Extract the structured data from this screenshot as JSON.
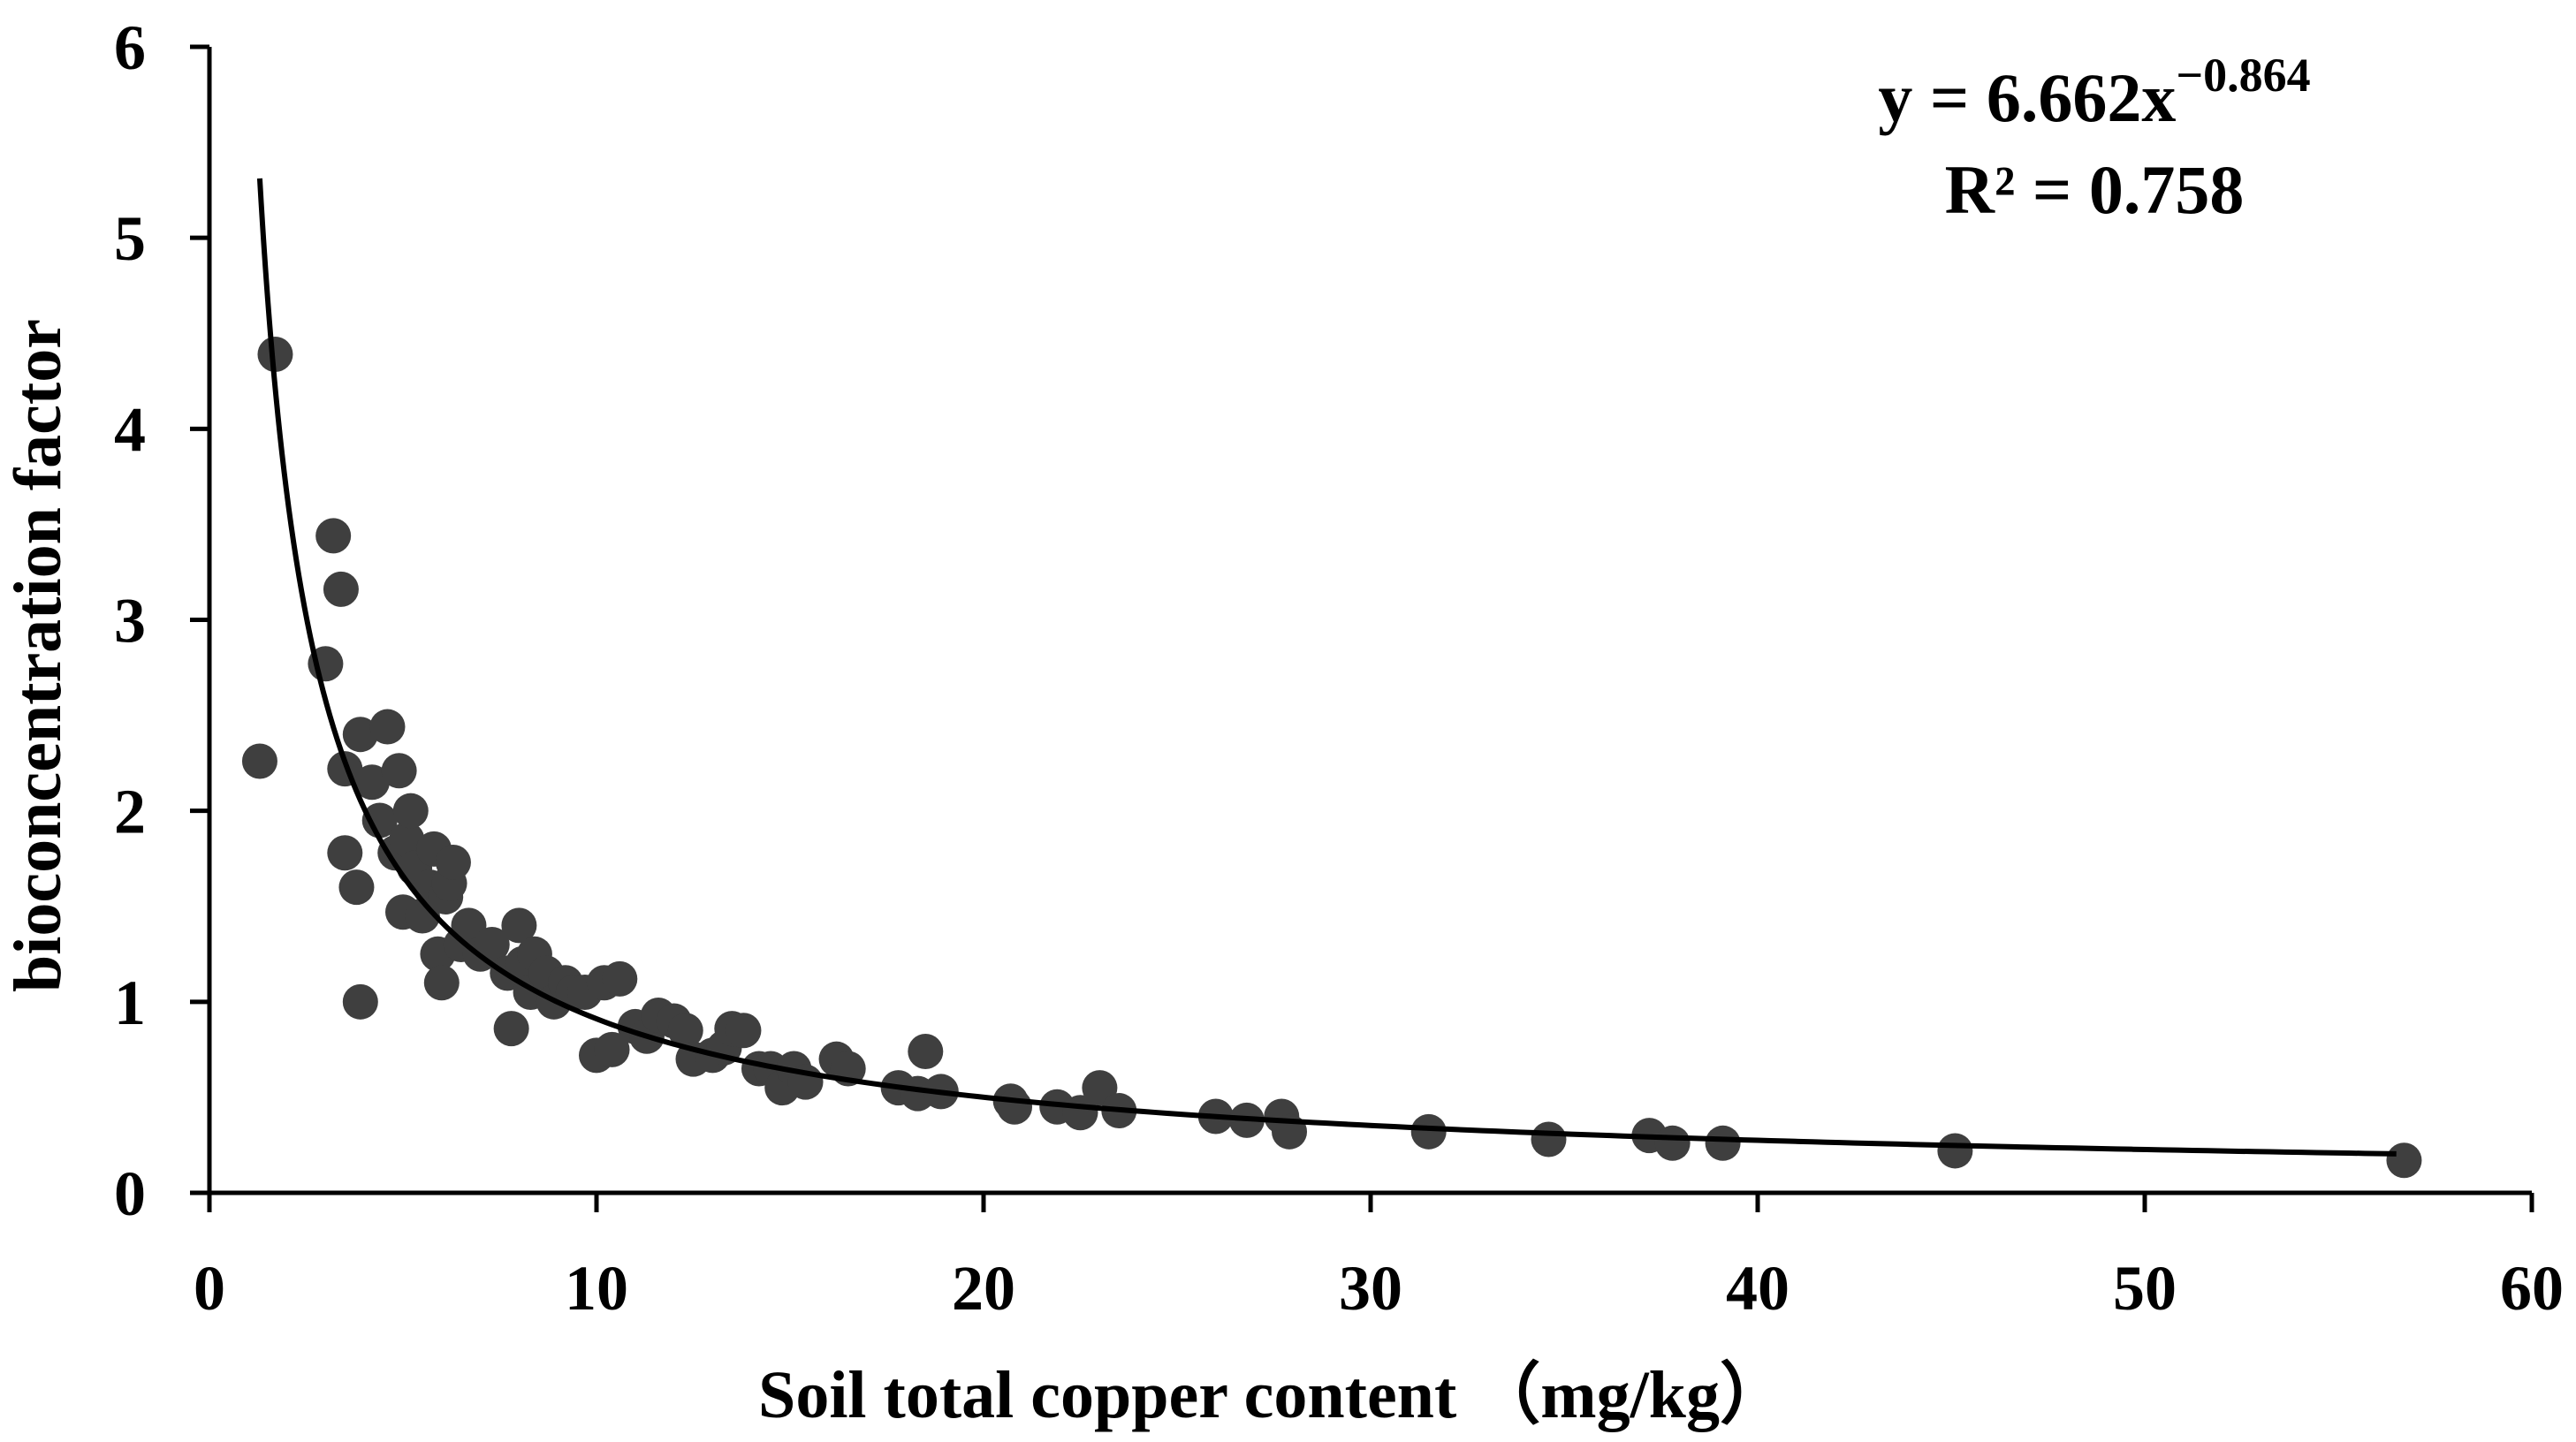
{
  "chart_data": {
    "type": "scatter",
    "xlabel": "Soil total copper content （mg/kg）",
    "ylabel": "bioconcentration factor",
    "xlim": [
      0,
      60
    ],
    "ylim": [
      0,
      6
    ],
    "xticks": [
      0,
      10,
      20,
      30,
      40,
      50,
      60
    ],
    "yticks": [
      0,
      1,
      2,
      3,
      4,
      5,
      6
    ],
    "xtick_labels": [
      "0",
      "10",
      "20",
      "30",
      "40",
      "50",
      "60"
    ],
    "ytick_labels": [
      "0",
      "1",
      "2",
      "3",
      "4",
      "5",
      "6"
    ],
    "grid": false,
    "legend": "none",
    "marker_color": "#3f3f3f",
    "trendline_color": "#000000",
    "trendline": {
      "kind": "power",
      "a": 6.662,
      "b": -0.864,
      "x_range": [
        1.3,
        56.5
      ],
      "equation": {
        "base": "y = 6.662x",
        "exponent": "−0.864"
      },
      "r2_label": "R² = 0.758"
    },
    "points": [
      [
        1.3,
        2.26
      ],
      [
        1.7,
        4.39
      ],
      [
        3.0,
        2.77
      ],
      [
        3.2,
        3.44
      ],
      [
        3.4,
        3.16
      ],
      [
        3.5,
        2.22
      ],
      [
        3.5,
        1.78
      ],
      [
        3.8,
        1.6
      ],
      [
        3.9,
        2.4
      ],
      [
        3.9,
        1.0
      ],
      [
        4.2,
        2.15
      ],
      [
        4.4,
        1.95
      ],
      [
        4.6,
        2.44
      ],
      [
        4.8,
        1.78
      ],
      [
        4.9,
        2.21
      ],
      [
        5.0,
        1.47
      ],
      [
        5.1,
        1.85
      ],
      [
        5.2,
        2.0
      ],
      [
        5.3,
        1.7
      ],
      [
        5.5,
        1.45
      ],
      [
        5.7,
        1.6
      ],
      [
        5.8,
        1.8
      ],
      [
        5.9,
        1.25
      ],
      [
        6.0,
        1.1
      ],
      [
        6.1,
        1.55
      ],
      [
        6.2,
        1.62
      ],
      [
        6.3,
        1.73
      ],
      [
        6.5,
        1.3
      ],
      [
        6.7,
        1.4
      ],
      [
        7.0,
        1.25
      ],
      [
        7.3,
        1.3
      ],
      [
        7.7,
        1.15
      ],
      [
        7.8,
        0.86
      ],
      [
        8.0,
        1.4
      ],
      [
        8.1,
        1.2
      ],
      [
        8.3,
        1.05
      ],
      [
        8.4,
        1.25
      ],
      [
        8.7,
        1.15
      ],
      [
        8.9,
        1.0
      ],
      [
        9.2,
        1.1
      ],
      [
        9.4,
        1.05
      ],
      [
        9.7,
        1.05
      ],
      [
        10.0,
        0.72
      ],
      [
        10.2,
        1.1
      ],
      [
        10.4,
        0.75
      ],
      [
        10.6,
        1.12
      ],
      [
        11.0,
        0.87
      ],
      [
        11.3,
        0.82
      ],
      [
        11.6,
        0.93
      ],
      [
        12.0,
        0.9
      ],
      [
        12.3,
        0.85
      ],
      [
        12.5,
        0.7
      ],
      [
        13.0,
        0.72
      ],
      [
        13.3,
        0.76
      ],
      [
        13.5,
        0.86
      ],
      [
        13.8,
        0.85
      ],
      [
        14.2,
        0.65
      ],
      [
        14.5,
        0.65
      ],
      [
        14.8,
        0.55
      ],
      [
        15.1,
        0.65
      ],
      [
        15.4,
        0.58
      ],
      [
        16.2,
        0.7
      ],
      [
        16.5,
        0.65
      ],
      [
        17.8,
        0.55
      ],
      [
        18.3,
        0.52
      ],
      [
        18.5,
        0.74
      ],
      [
        18.9,
        0.53
      ],
      [
        20.7,
        0.48
      ],
      [
        20.8,
        0.45
      ],
      [
        21.9,
        0.45
      ],
      [
        22.5,
        0.42
      ],
      [
        23.0,
        0.55
      ],
      [
        23.5,
        0.43
      ],
      [
        26.0,
        0.4
      ],
      [
        26.8,
        0.38
      ],
      [
        27.7,
        0.4
      ],
      [
        27.9,
        0.32
      ],
      [
        31.5,
        0.32
      ],
      [
        34.6,
        0.28
      ],
      [
        37.2,
        0.3
      ],
      [
        37.8,
        0.26
      ],
      [
        39.1,
        0.26
      ],
      [
        45.1,
        0.22
      ],
      [
        56.7,
        0.17
      ]
    ]
  }
}
